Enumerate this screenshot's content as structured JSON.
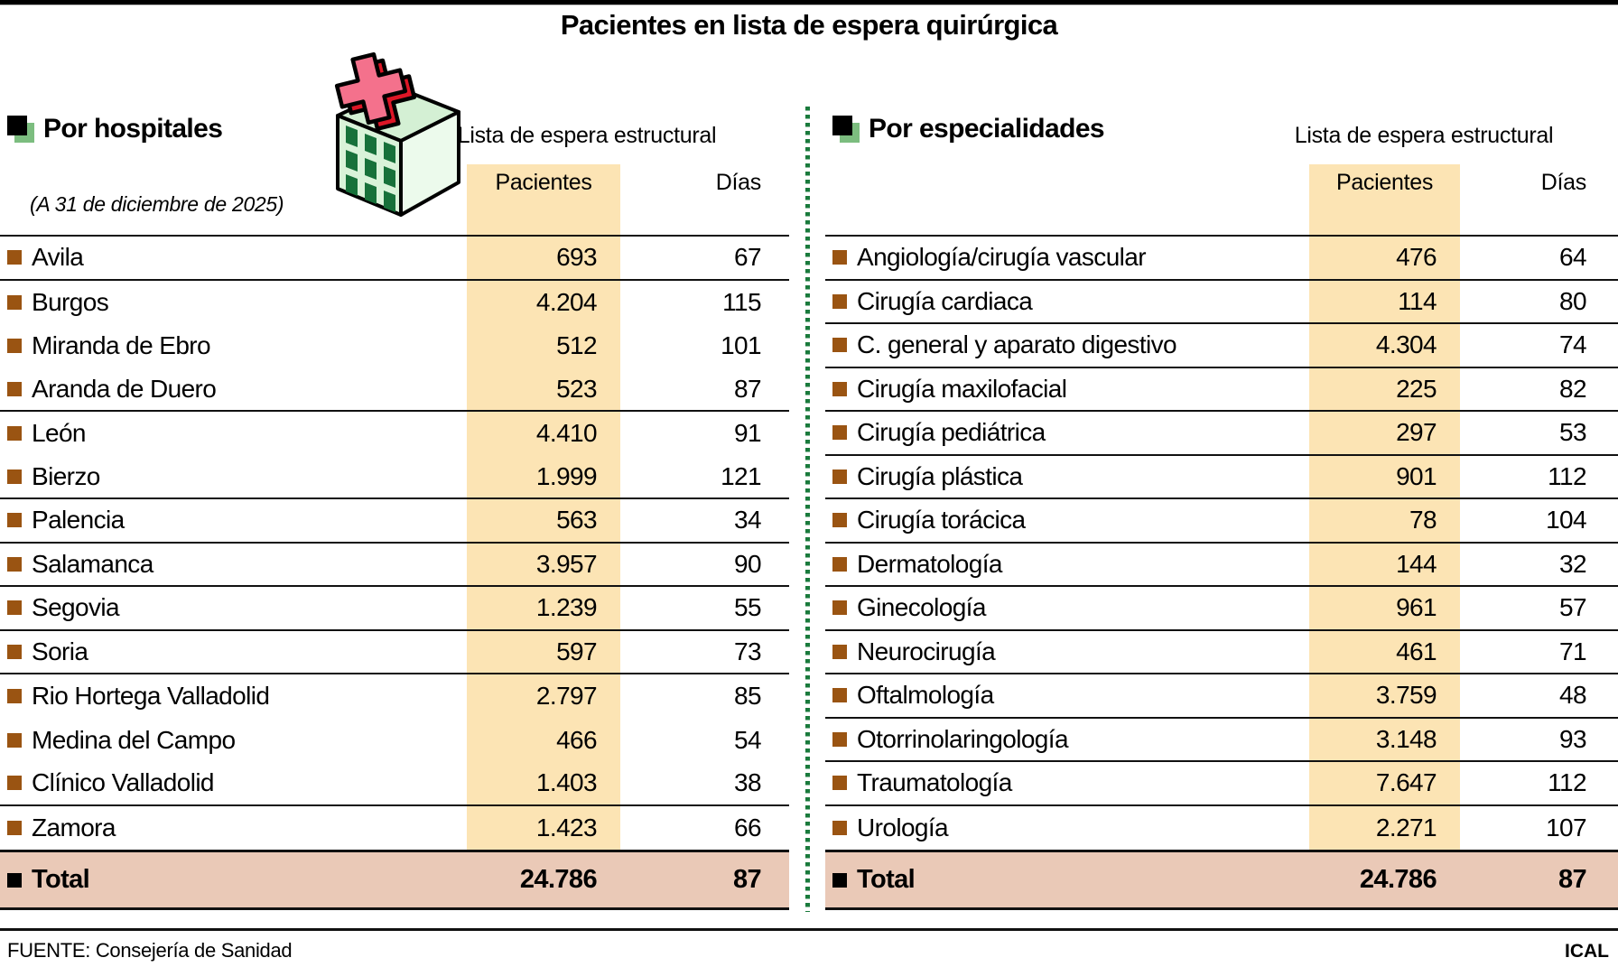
{
  "title": "Pacientes en lista de espera quirúrgica",
  "footer": {
    "source": "FUENTE: Consejería de Sanidad",
    "credit": "ICAL"
  },
  "colors": {
    "pacientes_band": "#fce4b4",
    "total_row_bg": "#eac9b7",
    "row_bullet_brown": "#9a5412",
    "section_bullet_green": "#7cbd7f",
    "divider_green": "#1a7a3c",
    "rule_black": "#111111"
  },
  "icons": {
    "hospital": "hospital-building-icon",
    "section_bullet": "section-bullet-icon",
    "row_bullet": "row-bullet-icon",
    "total_bullet": "total-bullet-icon"
  },
  "tables": [
    {
      "section_title": "Por hospitales",
      "date_note": "(A 31 de diciembre de 2025)",
      "group_header": "Lista de espera estructural",
      "columns": {
        "pacientes": "Pacientes",
        "dias": "Días"
      },
      "rows": [
        {
          "label": "Avila",
          "pacientes": "693",
          "dias": "67",
          "rule_after": true
        },
        {
          "label": "Burgos",
          "pacientes": "4.204",
          "dias": "115",
          "rule_after": false
        },
        {
          "label": "Miranda de Ebro",
          "pacientes": "512",
          "dias": "101",
          "rule_after": false
        },
        {
          "label": "Aranda de Duero",
          "pacientes": "523",
          "dias": "87",
          "rule_after": true
        },
        {
          "label": "León",
          "pacientes": "4.410",
          "dias": "91",
          "rule_after": false
        },
        {
          "label": "Bierzo",
          "pacientes": "1.999",
          "dias": "121",
          "rule_after": true
        },
        {
          "label": "Palencia",
          "pacientes": "563",
          "dias": "34",
          "rule_after": true
        },
        {
          "label": "Salamanca",
          "pacientes": "3.957",
          "dias": "90",
          "rule_after": true
        },
        {
          "label": "Segovia",
          "pacientes": "1.239",
          "dias": "55",
          "rule_after": true
        },
        {
          "label": "Soria",
          "pacientes": "597",
          "dias": "73",
          "rule_after": true
        },
        {
          "label": "Rio Hortega Valladolid",
          "pacientes": "2.797",
          "dias": "85",
          "rule_after": false
        },
        {
          "label": "Medina del Campo",
          "pacientes": "466",
          "dias": "54",
          "rule_after": false
        },
        {
          "label": "Clínico Valladolid",
          "pacientes": "1.403",
          "dias": "38",
          "rule_after": true
        },
        {
          "label": "Zamora",
          "pacientes": "1.423",
          "dias": "66",
          "rule_after": false
        }
      ],
      "total": {
        "label": "Total",
        "pacientes": "24.786",
        "dias": "87"
      }
    },
    {
      "section_title": "Por especialidades",
      "group_header": "Lista de espera estructural",
      "columns": {
        "pacientes": "Pacientes",
        "dias": "Días"
      },
      "rows": [
        {
          "label": "Angiología/cirugía vascular",
          "pacientes": "476",
          "dias": "64",
          "rule_after": true
        },
        {
          "label": "Cirugía cardiaca",
          "pacientes": "114",
          "dias": "80",
          "rule_after": true
        },
        {
          "label": "C. general y aparato digestivo",
          "pacientes": "4.304",
          "dias": "74",
          "rule_after": true
        },
        {
          "label": "Cirugía maxilofacial",
          "pacientes": "225",
          "dias": "82",
          "rule_after": true
        },
        {
          "label": "Cirugía pediátrica",
          "pacientes": "297",
          "dias": "53",
          "rule_after": true
        },
        {
          "label": "Cirugía plástica",
          "pacientes": "901",
          "dias": "112",
          "rule_after": true
        },
        {
          "label": "Cirugía torácica",
          "pacientes": "78",
          "dias": "104",
          "rule_after": true
        },
        {
          "label": "Dermatología",
          "pacientes": "144",
          "dias": "32",
          "rule_after": true
        },
        {
          "label": "Ginecología",
          "pacientes": "961",
          "dias": "57",
          "rule_after": true
        },
        {
          "label": "Neurocirugía",
          "pacientes": "461",
          "dias": "71",
          "rule_after": true
        },
        {
          "label": "Oftalmología",
          "pacientes": "3.759",
          "dias": "48",
          "rule_after": true
        },
        {
          "label": "Otorrinolaringología",
          "pacientes": "3.148",
          "dias": "93",
          "rule_after": true
        },
        {
          "label": "Traumatología",
          "pacientes": "7.647",
          "dias": "112",
          "rule_after": true
        },
        {
          "label": "Urología",
          "pacientes": "2.271",
          "dias": "107",
          "rule_after": false
        }
      ],
      "total": {
        "label": "Total",
        "pacientes": "24.786",
        "dias": "87"
      }
    }
  ],
  "chart_data": [
    {
      "type": "table",
      "title": "Por hospitales",
      "subtitle": "Lista de espera estructural",
      "note": "(A 31 de diciembre de 2025)",
      "columns": [
        "Pacientes",
        "Días"
      ],
      "rows": [
        [
          "Avila",
          693,
          67
        ],
        [
          "Burgos",
          4204,
          115
        ],
        [
          "Miranda de Ebro",
          512,
          101
        ],
        [
          "Aranda de Duero",
          523,
          87
        ],
        [
          "León",
          4410,
          91
        ],
        [
          "Bierzo",
          1999,
          121
        ],
        [
          "Palencia",
          563,
          34
        ],
        [
          "Salamanca",
          3957,
          90
        ],
        [
          "Segovia",
          1239,
          55
        ],
        [
          "Soria",
          597,
          73
        ],
        [
          "Rio Hortega Valladolid",
          2797,
          85
        ],
        [
          "Medina del Campo",
          466,
          54
        ],
        [
          "Clínico Valladolid",
          1403,
          38
        ],
        [
          "Zamora",
          1423,
          66
        ]
      ],
      "total": [
        "Total",
        24786,
        87
      ]
    },
    {
      "type": "table",
      "title": "Por especialidades",
      "subtitle": "Lista de espera estructural",
      "columns": [
        "Pacientes",
        "Días"
      ],
      "rows": [
        [
          "Angiología/cirugía vascular",
          476,
          64
        ],
        [
          "Cirugía cardiaca",
          114,
          80
        ],
        [
          "C. general y aparato digestivo",
          4304,
          74
        ],
        [
          "Cirugía maxilofacial",
          225,
          82
        ],
        [
          "Cirugía pediátrica",
          297,
          53
        ],
        [
          "Cirugía plástica",
          901,
          112
        ],
        [
          "Cirugía torácica",
          78,
          104
        ],
        [
          "Dermatología",
          144,
          32
        ],
        [
          "Ginecología",
          961,
          57
        ],
        [
          "Neurocirugía",
          461,
          71
        ],
        [
          "Oftalmología",
          3759,
          48
        ],
        [
          "Otorrinolaringología",
          3148,
          93
        ],
        [
          "Traumatología",
          7647,
          112
        ],
        [
          "Urología",
          2271,
          107
        ]
      ],
      "total": [
        "Total",
        24786,
        87
      ]
    }
  ]
}
